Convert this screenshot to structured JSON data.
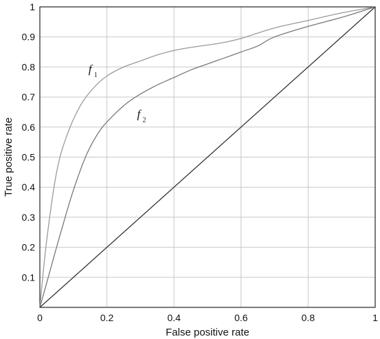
{
  "chart_data": {
    "type": "line",
    "xlabel": "False positive rate",
    "ylabel": "True positive rate",
    "xlim": [
      0,
      1
    ],
    "ylim": [
      0,
      1
    ],
    "grid": true,
    "x_ticks": [
      "0",
      "0.2",
      "0.4",
      "0.6",
      "0.8",
      "1"
    ],
    "y_ticks": [
      "0.1",
      "0.2",
      "0.3",
      "0.4",
      "0.5",
      "0.6",
      "0.7",
      "0.8",
      "0.9",
      "1"
    ],
    "series": [
      {
        "name": "f1",
        "label_main": "f",
        "label_sub": "1",
        "color": "#999999",
        "x": [
          0,
          0.02,
          0.05,
          0.08,
          0.12,
          0.16,
          0.2,
          0.25,
          0.3,
          0.35,
          0.4,
          0.45,
          0.5,
          0.55,
          0.6,
          0.7,
          0.8,
          0.9,
          1
        ],
        "y": [
          0,
          0.22,
          0.45,
          0.57,
          0.67,
          0.73,
          0.77,
          0.8,
          0.82,
          0.84,
          0.855,
          0.865,
          0.873,
          0.882,
          0.895,
          0.93,
          0.955,
          0.98,
          1
        ]
      },
      {
        "name": "f2",
        "label_main": "f",
        "label_sub": "2",
        "color": "#777777",
        "x": [
          0,
          0.03,
          0.06,
          0.1,
          0.14,
          0.18,
          0.22,
          0.26,
          0.3,
          0.35,
          0.4,
          0.45,
          0.5,
          0.55,
          0.6,
          0.65,
          0.7,
          0.8,
          0.9,
          1
        ],
        "y": [
          0,
          0.12,
          0.24,
          0.39,
          0.51,
          0.59,
          0.64,
          0.68,
          0.71,
          0.74,
          0.765,
          0.79,
          0.81,
          0.83,
          0.85,
          0.87,
          0.9,
          0.935,
          0.965,
          1
        ]
      },
      {
        "name": "diagonal",
        "color": "#333333",
        "x": [
          0,
          1
        ],
        "y": [
          0,
          1
        ]
      }
    ]
  }
}
